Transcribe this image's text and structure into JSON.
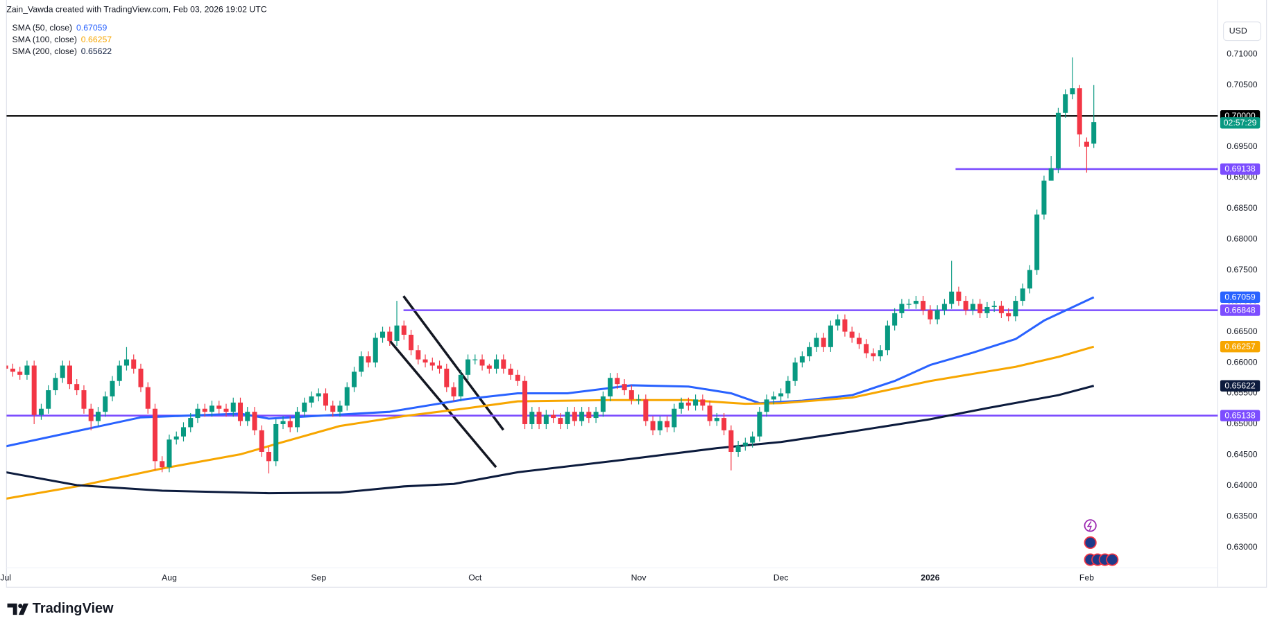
{
  "header": {
    "credit": "Zain_Vawda created with TradingView.com, Feb 03, 2026 19:02 UTC",
    "currency": "USD",
    "brand": "TradingView"
  },
  "chart_data": {
    "type": "candlestick",
    "open": [
      0.6595,
      0.659,
      0.6585,
      0.658,
      0.6595,
      0.6515,
      0.6525,
      0.6555,
      0.6575,
      0.6595,
      0.6565,
      0.6555,
      0.6525,
      0.6505,
      0.652,
      0.6545,
      0.657,
      0.6595,
      0.6605,
      0.659,
      0.656,
      0.6525,
      0.644,
      0.643,
      0.6475,
      0.648,
      0.6495,
      0.651,
      0.6525,
      0.652,
      0.653,
      0.6525,
      0.652,
      0.6535,
      0.6505,
      0.652,
      0.649,
      0.6455,
      0.644,
      0.65,
      0.6505,
      0.6495,
      0.652,
      0.6535,
      0.6545,
      0.655,
      0.653,
      0.652,
      0.653,
      0.656,
      0.6585,
      0.661,
      0.66,
      0.664,
      0.665,
      0.6635,
      0.666,
      0.6645,
      0.662,
      0.6605,
      0.66,
      0.6595,
      0.659,
      0.656,
      0.6545,
      0.658,
      0.6605,
      0.6605,
      0.6595,
      0.659,
      0.6605,
      0.659,
      0.658,
      0.657,
      0.65,
      0.652,
      0.65,
      0.6515,
      0.651,
      0.65,
      0.652,
      0.6505,
      0.652,
      0.651,
      0.652,
      0.6545,
      0.6575,
      0.6565,
      0.6555,
      0.654,
      0.654,
      0.6505,
      0.649,
      0.6505,
      0.6495,
      0.6525,
      0.6535,
      0.653,
      0.654,
      0.653,
      0.6505,
      0.651,
      0.649,
      0.6455,
      0.6465,
      0.647,
      0.648,
      0.652,
      0.654,
      0.6545,
      0.655,
      0.657,
      0.66,
      0.661,
      0.6625,
      0.664,
      0.6625,
      0.666,
      0.667,
      0.665,
      0.664,
      0.663,
      0.6615,
      0.661,
      0.662,
      0.666,
      0.668,
      0.6695,
      0.6695,
      0.67,
      0.6685,
      0.667,
      0.6685,
      0.6695,
      0.6715,
      0.67,
      0.6685,
      0.6695,
      0.668,
      0.669,
      0.6692,
      0.668,
      0.6675,
      0.67,
      0.672,
      0.675,
      0.684,
      0.6895,
      0.6915,
      0.7005,
      0.7035,
      0.7045,
      0.6958,
      0.6955
    ],
    "high": [
      0.6603,
      0.6598,
      0.6593,
      0.6603,
      0.6603,
      0.6533,
      0.6563,
      0.6583,
      0.6603,
      0.6603,
      0.6573,
      0.6563,
      0.6533,
      0.6528,
      0.6553,
      0.6578,
      0.6603,
      0.6625,
      0.6613,
      0.6598,
      0.6568,
      0.6533,
      0.6448,
      0.6483,
      0.6488,
      0.6503,
      0.6518,
      0.6533,
      0.6533,
      0.6538,
      0.6538,
      0.6533,
      0.6543,
      0.6543,
      0.6528,
      0.6528,
      0.6498,
      0.6463,
      0.6508,
      0.6513,
      0.6513,
      0.6528,
      0.6543,
      0.6553,
      0.6558,
      0.6558,
      0.6538,
      0.6538,
      0.6568,
      0.6593,
      0.6618,
      0.6618,
      0.6648,
      0.6658,
      0.6658,
      0.67,
      0.6668,
      0.6653,
      0.6628,
      0.6613,
      0.6608,
      0.6603,
      0.6598,
      0.6568,
      0.6588,
      0.6613,
      0.6613,
      0.6613,
      0.6598,
      0.6613,
      0.6613,
      0.6598,
      0.6588,
      0.6578,
      0.6528,
      0.6528,
      0.6523,
      0.6523,
      0.6518,
      0.6528,
      0.6528,
      0.6528,
      0.6528,
      0.6528,
      0.6553,
      0.6583,
      0.6583,
      0.6573,
      0.6563,
      0.6548,
      0.6548,
      0.6513,
      0.6513,
      0.6513,
      0.6533,
      0.6543,
      0.6543,
      0.6548,
      0.6548,
      0.6538,
      0.6518,
      0.6518,
      0.6498,
      0.6473,
      0.6478,
      0.6488,
      0.6528,
      0.6548,
      0.6553,
      0.6558,
      0.6578,
      0.6608,
      0.6618,
      0.6633,
      0.6648,
      0.6648,
      0.6668,
      0.6678,
      0.6678,
      0.6658,
      0.6648,
      0.6638,
      0.6623,
      0.6628,
      0.6668,
      0.6688,
      0.6703,
      0.6703,
      0.6708,
      0.6708,
      0.6693,
      0.6693,
      0.6703,
      0.6765,
      0.6723,
      0.6708,
      0.6703,
      0.6703,
      0.6698,
      0.67,
      0.67,
      0.6688,
      0.6708,
      0.6728,
      0.6758,
      0.6848,
      0.6903,
      0.6935,
      0.7013,
      0.7043,
      0.7095,
      0.705,
      0.6965,
      0.705
    ],
    "low": [
      0.6582,
      0.6577,
      0.6572,
      0.6572,
      0.65,
      0.6507,
      0.6517,
      0.6547,
      0.6567,
      0.6557,
      0.6547,
      0.6517,
      0.649,
      0.6497,
      0.6512,
      0.6537,
      0.6562,
      0.6587,
      0.6582,
      0.6552,
      0.6517,
      0.6425,
      0.6422,
      0.6422,
      0.6467,
      0.6472,
      0.6487,
      0.6502,
      0.6512,
      0.6512,
      0.6517,
      0.6512,
      0.6512,
      0.6497,
      0.6497,
      0.6482,
      0.6447,
      0.642,
      0.6432,
      0.6492,
      0.6487,
      0.6487,
      0.6512,
      0.6527,
      0.6537,
      0.6522,
      0.6512,
      0.6512,
      0.6522,
      0.6552,
      0.6577,
      0.6592,
      0.6592,
      0.6632,
      0.6627,
      0.6627,
      0.6637,
      0.6612,
      0.6597,
      0.6592,
      0.6587,
      0.6582,
      0.6552,
      0.6537,
      0.6537,
      0.6572,
      0.6597,
      0.6587,
      0.6582,
      0.6582,
      0.6582,
      0.6572,
      0.6562,
      0.6492,
      0.6492,
      0.6492,
      0.6492,
      0.6502,
      0.6492,
      0.6492,
      0.6497,
      0.6497,
      0.6502,
      0.6502,
      0.6512,
      0.6537,
      0.6557,
      0.6547,
      0.6532,
      0.6532,
      0.6497,
      0.6482,
      0.6482,
      0.6487,
      0.6487,
      0.6517,
      0.6522,
      0.6522,
      0.6522,
      0.6497,
      0.6497,
      0.6482,
      0.6425,
      0.6447,
      0.6457,
      0.6462,
      0.6472,
      0.6512,
      0.6532,
      0.6537,
      0.6542,
      0.6562,
      0.6592,
      0.6602,
      0.6617,
      0.6617,
      0.6617,
      0.6652,
      0.6642,
      0.6632,
      0.6622,
      0.6607,
      0.6602,
      0.6602,
      0.6612,
      0.6652,
      0.6672,
      0.6687,
      0.6687,
      0.6677,
      0.6662,
      0.6662,
      0.6677,
      0.6687,
      0.6692,
      0.6677,
      0.6677,
      0.6672,
      0.6672,
      0.6682,
      0.6672,
      0.6667,
      0.6667,
      0.6692,
      0.6712,
      0.6742,
      0.6832,
      0.69,
      0.6907,
      0.6997,
      0.7027,
      0.695,
      0.6908,
      0.6948
    ],
    "close": [
      0.659,
      0.6585,
      0.658,
      0.6595,
      0.6515,
      0.6525,
      0.6555,
      0.6575,
      0.6595,
      0.6565,
      0.6555,
      0.6525,
      0.6505,
      0.652,
      0.6545,
      0.657,
      0.6595,
      0.6605,
      0.659,
      0.656,
      0.6525,
      0.644,
      0.643,
      0.6475,
      0.648,
      0.6495,
      0.651,
      0.6525,
      0.652,
      0.653,
      0.6525,
      0.652,
      0.6535,
      0.6505,
      0.652,
      0.649,
      0.6455,
      0.644,
      0.65,
      0.6505,
      0.6495,
      0.652,
      0.6535,
      0.6545,
      0.655,
      0.653,
      0.652,
      0.653,
      0.656,
      0.6585,
      0.661,
      0.66,
      0.664,
      0.665,
      0.6635,
      0.666,
      0.6645,
      0.662,
      0.6605,
      0.66,
      0.6595,
      0.659,
      0.656,
      0.6545,
      0.658,
      0.6605,
      0.6605,
      0.6595,
      0.659,
      0.6605,
      0.659,
      0.658,
      0.657,
      0.65,
      0.652,
      0.65,
      0.6515,
      0.651,
      0.65,
      0.652,
      0.6505,
      0.652,
      0.651,
      0.652,
      0.6545,
      0.6575,
      0.6565,
      0.6555,
      0.654,
      0.654,
      0.6505,
      0.649,
      0.6505,
      0.6495,
      0.6525,
      0.6535,
      0.653,
      0.654,
      0.653,
      0.6505,
      0.651,
      0.649,
      0.6455,
      0.6465,
      0.647,
      0.648,
      0.652,
      0.654,
      0.6545,
      0.655,
      0.657,
      0.66,
      0.661,
      0.6625,
      0.664,
      0.6625,
      0.666,
      0.667,
      0.665,
      0.664,
      0.663,
      0.6615,
      0.661,
      0.662,
      0.666,
      0.668,
      0.6695,
      0.6695,
      0.67,
      0.6685,
      0.667,
      0.6685,
      0.6695,
      0.6715,
      0.67,
      0.6685,
      0.6695,
      0.668,
      0.669,
      0.6692,
      0.668,
      0.6675,
      0.67,
      0.672,
      0.675,
      0.684,
      0.6895,
      0.6915,
      0.7005,
      0.7035,
      0.7045,
      0.697,
      0.695,
      0.699
    ],
    "up_color": "#089981",
    "down_color": "#f23645",
    "series": [
      {
        "name": "SMA (50, close)",
        "color": "#2962ff",
        "x": [
          0,
          19,
          33,
          37,
          54,
          65,
          72,
          79,
          88,
          96,
          102,
          106,
          112,
          119,
          125,
          130,
          136,
          142,
          146,
          153
        ],
        "values": [
          0.6464,
          0.6511,
          0.6517,
          0.6509,
          0.652,
          0.6541,
          0.655,
          0.655,
          0.6563,
          0.6561,
          0.655,
          0.6534,
          0.6538,
          0.6547,
          0.657,
          0.6596,
          0.6616,
          0.6638,
          0.6668,
          0.67059
        ]
      },
      {
        "name": "SMA (100, close)",
        "color": "#f7a600",
        "x": [
          0,
          10,
          22,
          33,
          39,
          47,
          56,
          65,
          72,
          85,
          96,
          104,
          109,
          119,
          130,
          142,
          148,
          153
        ],
        "values": [
          0.6379,
          0.6399,
          0.6428,
          0.6451,
          0.6471,
          0.6497,
          0.6513,
          0.6526,
          0.6537,
          0.6539,
          0.6539,
          0.6533,
          0.6534,
          0.6543,
          0.657,
          0.6593,
          0.6609,
          0.66257
        ]
      },
      {
        "name": "SMA (200, close)",
        "color": "#0c1b3d",
        "x": [
          0,
          10,
          22,
          37,
          47,
          56,
          63,
          72,
          86,
          100,
          109,
          119,
          130,
          138,
          148,
          153
        ],
        "values": [
          0.6422,
          0.6401,
          0.6392,
          0.6388,
          0.6389,
          0.6399,
          0.6403,
          0.6422,
          0.6441,
          0.6461,
          0.6471,
          0.6488,
          0.6508,
          0.6526,
          0.6547,
          0.65622
        ]
      }
    ],
    "levels": [
      {
        "value": 0.7,
        "label": "0.70000",
        "color": "#000000"
      },
      {
        "value": 0.69138,
        "color": "#7c4dff"
      },
      {
        "value": 0.66848,
        "color": "#7c4dff"
      },
      {
        "value": 0.65138,
        "color": "#7c4dff"
      }
    ],
    "countdown": "02:57:29",
    "ylim": [
      0.6267,
      0.7188
    ],
    "yticks": [
      {
        "value": 0.63,
        "label": "0.63000"
      },
      {
        "value": 0.635,
        "label": "0.63500"
      },
      {
        "value": 0.64,
        "label": "0.64000"
      },
      {
        "value": 0.645,
        "label": "0.64500"
      },
      {
        "value": 0.65,
        "label": "0.65000"
      },
      {
        "value": 0.655,
        "label": "0.65500"
      },
      {
        "value": 0.66,
        "label": "0.66000"
      },
      {
        "value": 0.665,
        "label": "0.66500"
      },
      {
        "value": 0.67,
        "label": "0.67000"
      },
      {
        "value": 0.675,
        "label": "0.67500"
      },
      {
        "value": 0.68,
        "label": "0.68000"
      },
      {
        "value": 0.685,
        "label": "0.68500"
      },
      {
        "value": 0.69,
        "label": "0.69000"
      },
      {
        "value": 0.695,
        "label": "0.69500"
      },
      {
        "value": 0.7,
        "label": "0.70000"
      },
      {
        "value": 0.705,
        "label": "0.70500"
      },
      {
        "value": 0.71,
        "label": "0.71000"
      }
    ],
    "xticks": [
      {
        "value": 0,
        "label": "Jul"
      },
      {
        "value": 23,
        "label": "Aug"
      },
      {
        "value": 44,
        "label": "Sep"
      },
      {
        "value": 66,
        "label": "Oct"
      },
      {
        "value": 89,
        "label": "Nov"
      },
      {
        "value": 109,
        "label": "Dec"
      },
      {
        "value": 130,
        "label": "2026"
      },
      {
        "value": 152,
        "label": "Feb"
      }
    ],
    "grid": false
  }
}
